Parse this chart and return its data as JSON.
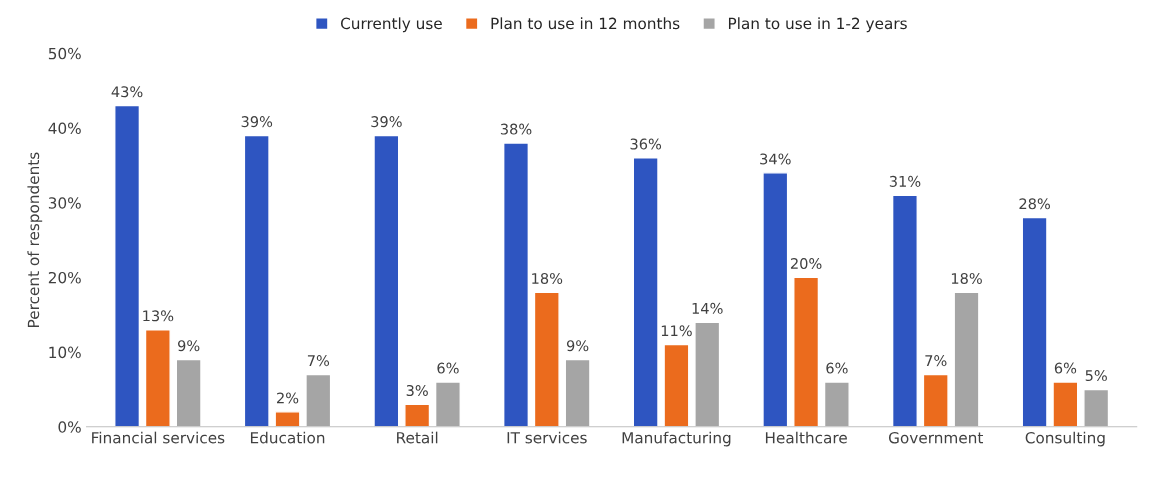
{
  "chart_data": {
    "type": "bar",
    "ylabel": "Percent of respondents",
    "categories": [
      "Financial services",
      "Education",
      "Retail",
      "IT services",
      "Manufacturing",
      "Healthcare",
      "Government",
      "Consulting"
    ],
    "series": [
      {
        "name": "Currently use",
        "color": "#2e55c1",
        "values": [
          43,
          39,
          39,
          38,
          36,
          34,
          31,
          28
        ],
        "value_labels": [
          "43%",
          "39%",
          "39%",
          "38%",
          "36%",
          "34%",
          "31%",
          "28%"
        ]
      },
      {
        "name": "Plan to use in 12 months",
        "color": "#eb6b1d",
        "values": [
          13,
          2,
          3,
          18,
          11,
          20,
          7,
          6
        ],
        "value_labels": [
          "13%",
          "2%",
          "3%",
          "18%",
          "11%",
          "20%",
          "7%",
          "6%"
        ]
      },
      {
        "name": "Plan to use in 1-2 years",
        "color": "#a5a5a5",
        "values": [
          9,
          7,
          6,
          9,
          14,
          6,
          18,
          5
        ],
        "value_labels": [
          "9%",
          "7%",
          "6%",
          "9%",
          "14%",
          "6%",
          "18%",
          "5%"
        ]
      }
    ],
    "ylim": [
      0,
      50
    ],
    "yticks": [
      {
        "value": 0,
        "label": "0%"
      },
      {
        "value": 10,
        "label": "10%"
      },
      {
        "value": 20,
        "label": "20%"
      },
      {
        "value": 30,
        "label": "30%"
      },
      {
        "value": 40,
        "label": "40%"
      },
      {
        "value": 50,
        "label": "50%"
      }
    ],
    "grid": false,
    "legend": "top"
  }
}
